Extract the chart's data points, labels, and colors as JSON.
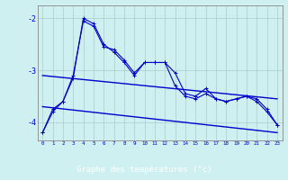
{
  "xlabel": "Graphe des températures (°c)",
  "x_ticks": [
    0,
    1,
    2,
    3,
    4,
    5,
    6,
    7,
    8,
    9,
    10,
    11,
    12,
    13,
    14,
    15,
    16,
    17,
    18,
    19,
    20,
    21,
    22,
    23
  ],
  "ylim": [
    -4.35,
    -1.75
  ],
  "yticks": [
    -4,
    -3,
    -2
  ],
  "background_color": "#cff0f0",
  "xlabel_bg_color": "#0000aa",
  "xlabel_text_color": "#ffffff",
  "grid_color": "#aacccc",
  "line_color": "#0000cc",
  "curve1_x": [
    0,
    1,
    2,
    3,
    4,
    5,
    6,
    7,
    8,
    9,
    10,
    11,
    12,
    13,
    14,
    15,
    16,
    17,
    18,
    19,
    20,
    21,
    22,
    23
  ],
  "curve1_y": [
    -4.2,
    -3.75,
    -3.6,
    -3.15,
    -2.0,
    -2.1,
    -2.5,
    -2.65,
    -2.85,
    -3.1,
    -2.85,
    -2.85,
    -2.85,
    -3.05,
    -3.45,
    -3.5,
    -3.35,
    -3.55,
    -3.6,
    -3.55,
    -3.5,
    -3.6,
    -3.8,
    -4.05
  ],
  "curve2_x": [
    0,
    1,
    2,
    3,
    4,
    5,
    6,
    7,
    8,
    9,
    10,
    11,
    12,
    13,
    14,
    15,
    16,
    17,
    18,
    19,
    20,
    21,
    22,
    23
  ],
  "curve2_y": [
    -4.2,
    -3.8,
    -3.6,
    -3.1,
    -2.05,
    -2.15,
    -2.55,
    -2.6,
    -2.8,
    -3.05,
    -2.85,
    -2.85,
    -2.85,
    -3.3,
    -3.5,
    -3.55,
    -3.45,
    -3.55,
    -3.6,
    -3.55,
    -3.5,
    -3.55,
    -3.75,
    -4.05
  ],
  "trend1_x": [
    0,
    23
  ],
  "trend1_y": [
    -3.1,
    -3.55
  ],
  "trend2_x": [
    0,
    23
  ],
  "trend2_y": [
    -3.7,
    -4.2
  ]
}
